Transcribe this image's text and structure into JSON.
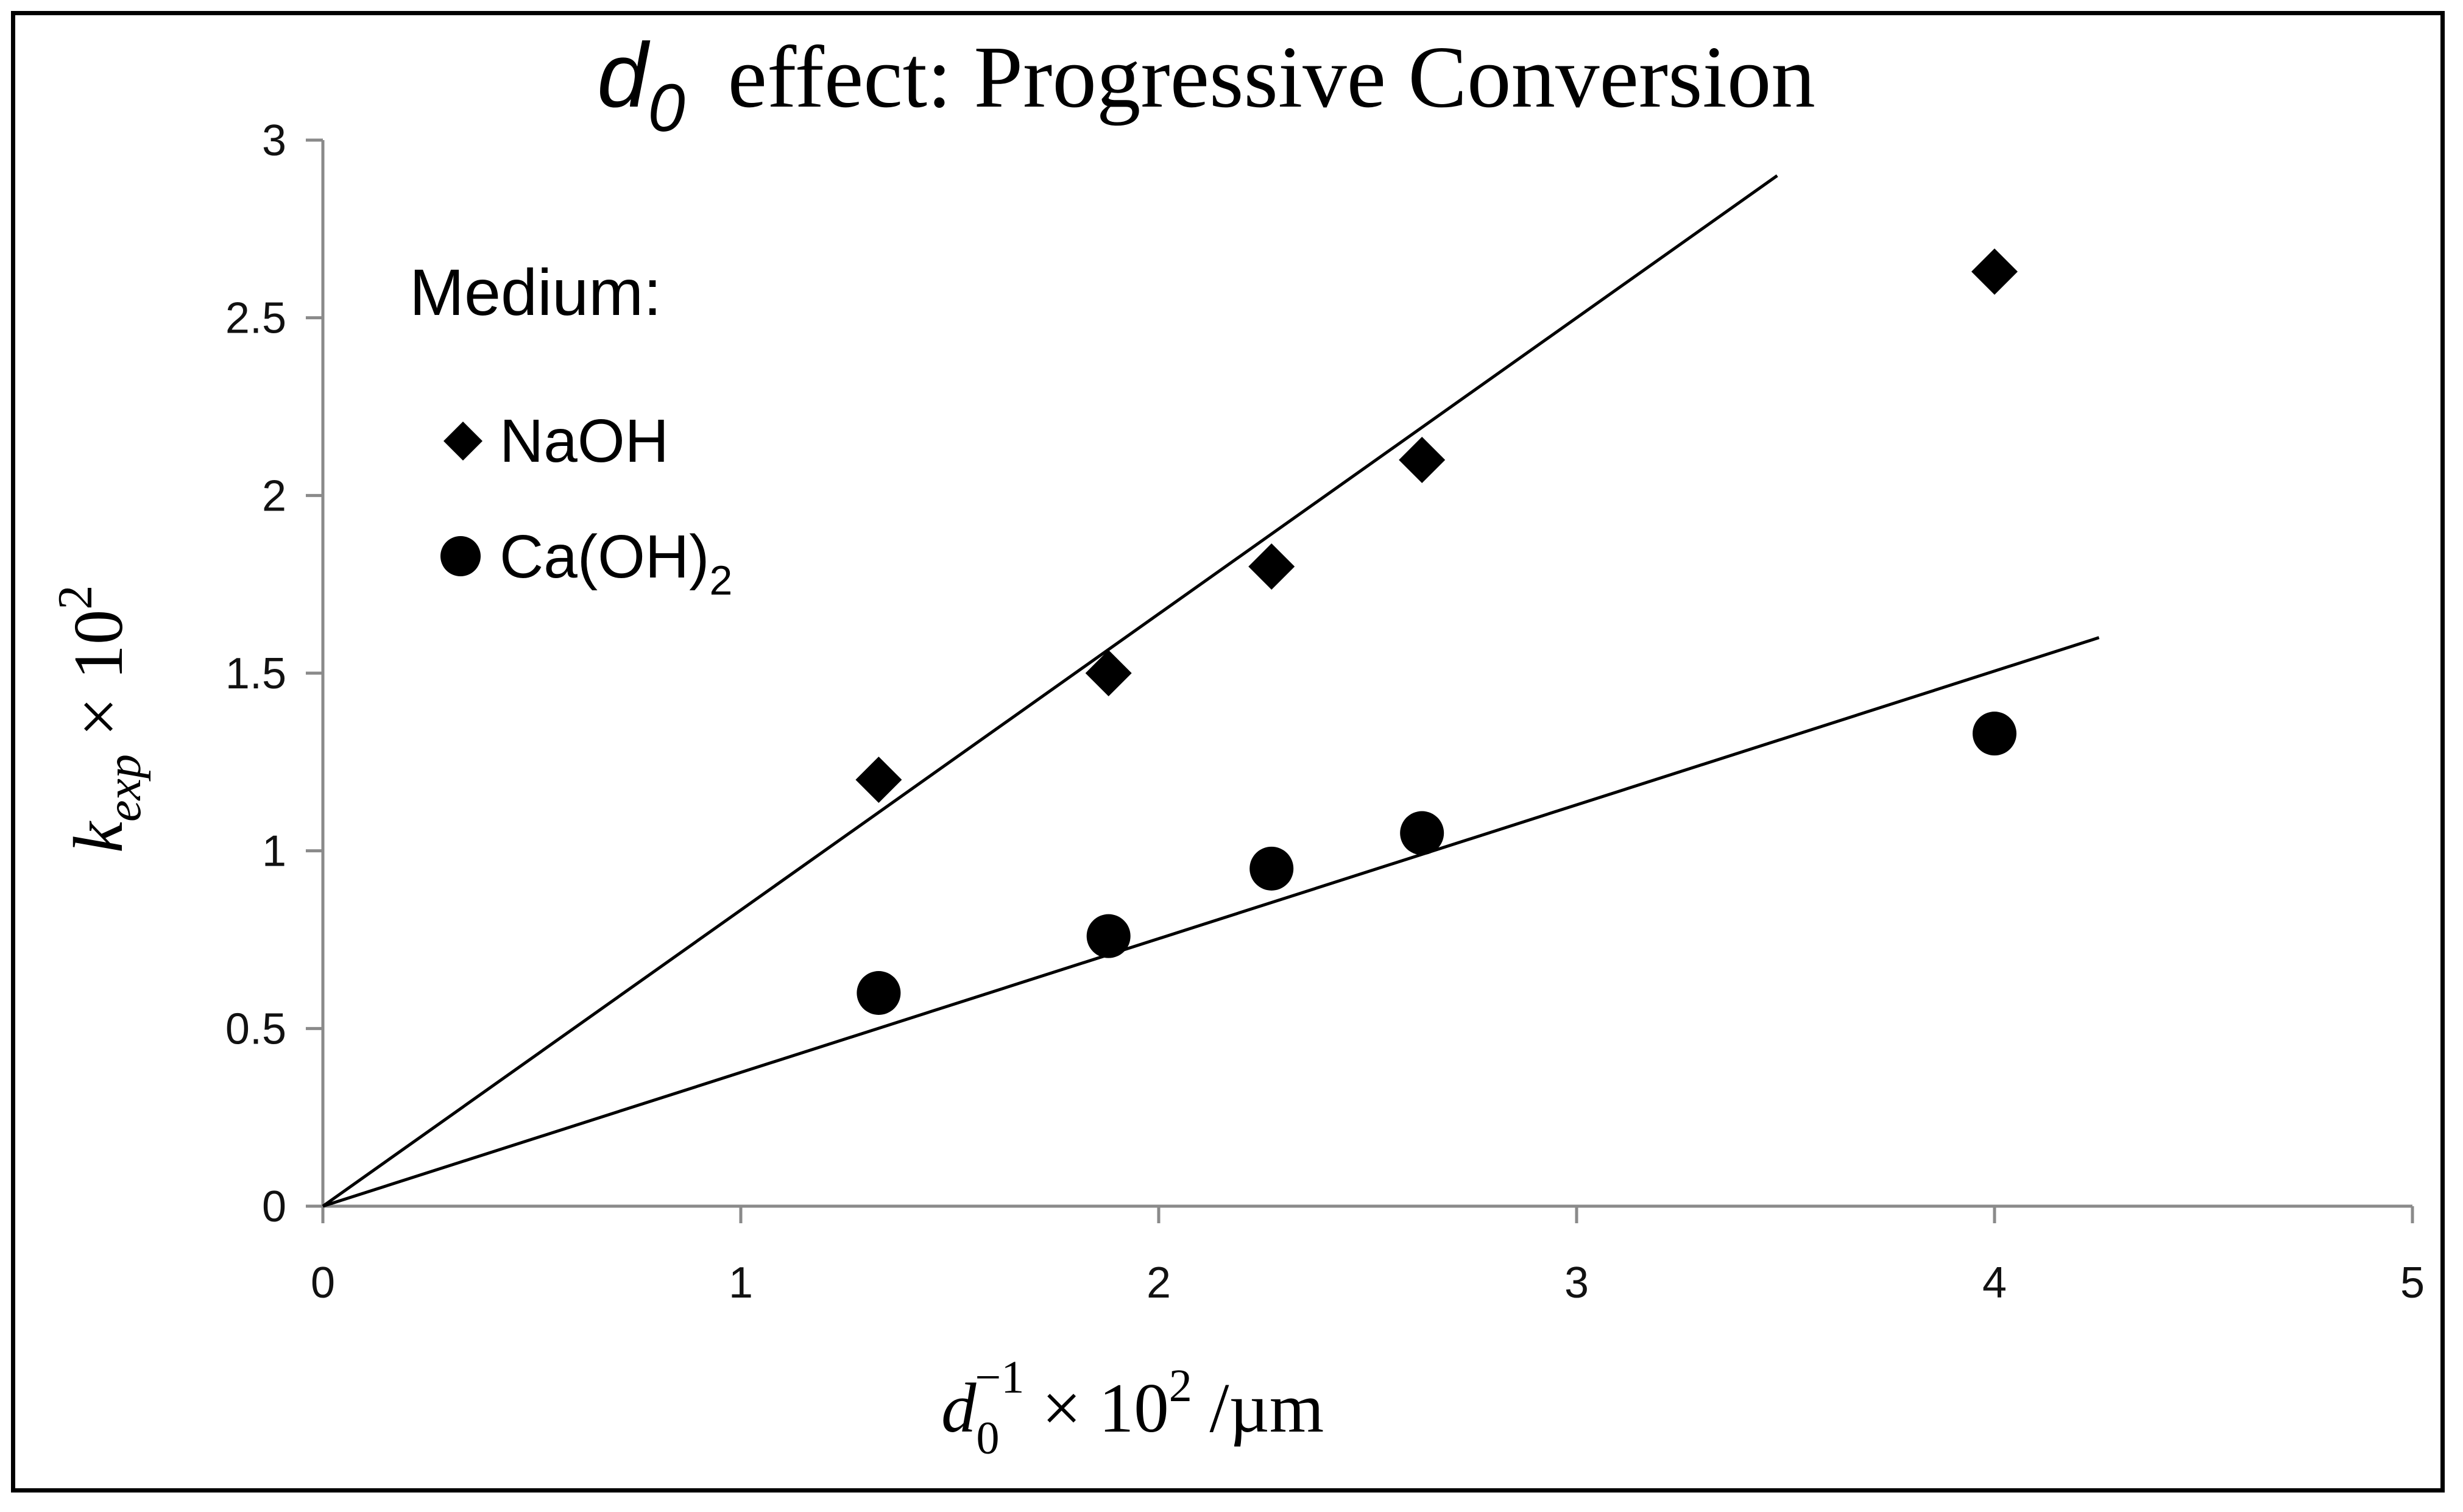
{
  "chart_data": {
    "type": "scatter",
    "title": {
      "symbol": "d",
      "symbol_sub": "0",
      "text": "effect: Progressive Conversion"
    },
    "xlabel": {
      "base": "d",
      "sub": "0",
      "sup": "−1",
      "rest": " × 10",
      "rest_sup": "2",
      "unit": " /µm"
    },
    "ylabel": {
      "base": "k",
      "sub": "exp",
      "rest": " × 10",
      "rest_sup": "2"
    },
    "xlim": [
      0,
      5
    ],
    "ylim": [
      0,
      3
    ],
    "xticks": [
      0,
      1,
      2,
      3,
      4,
      5
    ],
    "yticks": [
      0,
      0.5,
      1,
      1.5,
      2,
      2.5,
      3
    ],
    "xtick_labels": [
      "0",
      "1",
      "2",
      "3",
      "4",
      "5"
    ],
    "ytick_labels": [
      "0",
      "0.5",
      "1",
      "1.5",
      "2",
      "2.5",
      "3"
    ],
    "grid": false,
    "legend": {
      "title": "Medium:",
      "placement": "top-left"
    },
    "series": [
      {
        "name": "NaOH",
        "marker": "diamond",
        "x": [
          1.33,
          1.88,
          2.27,
          2.63,
          4.0
        ],
        "y": [
          1.2,
          1.5,
          1.8,
          2.1,
          2.63
        ],
        "fit_line": {
          "x": [
            0,
            3.48
          ],
          "y": [
            0,
            2.9
          ]
        }
      },
      {
        "name": "Ca(OH)",
        "name_sub": "2",
        "marker": "circle",
        "x": [
          1.33,
          1.88,
          2.27,
          2.63,
          4.0
        ],
        "y": [
          0.6,
          0.76,
          0.95,
          1.05,
          1.33
        ],
        "fit_line": {
          "x": [
            0,
            4.25
          ],
          "y": [
            0,
            1.6
          ]
        }
      }
    ],
    "colors": {
      "markers": "#000000",
      "axis": "#8a8a8a",
      "fit_lines": "#000000"
    }
  }
}
